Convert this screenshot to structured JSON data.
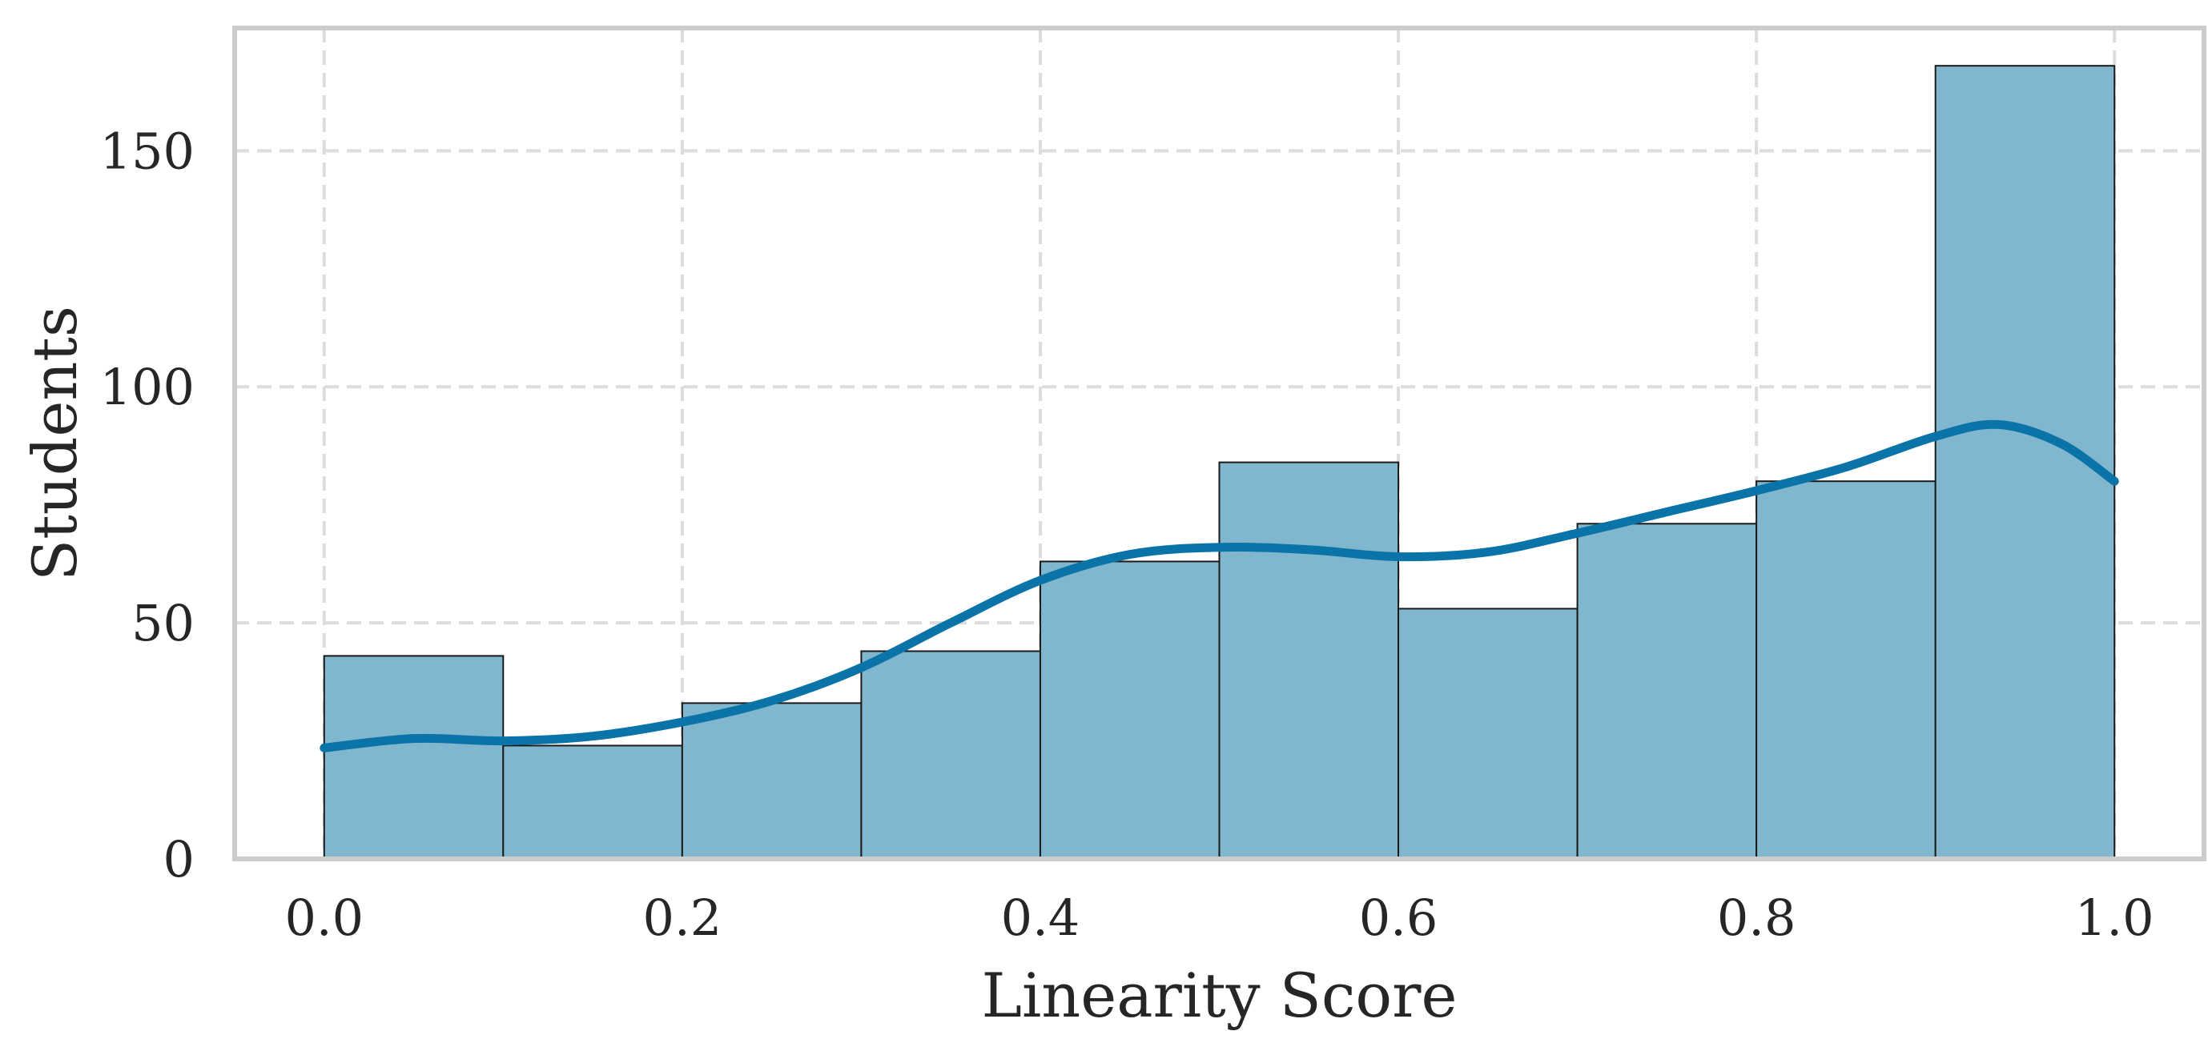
{
  "chart_data": {
    "type": "bar",
    "subtype": "histogram_with_kde",
    "xlabel": "Linearity Score",
    "ylabel": "Students",
    "xlim": [
      -0.05,
      1.05
    ],
    "ylim": [
      0,
      176
    ],
    "xticks": [
      0.0,
      0.2,
      0.4,
      0.6,
      0.8,
      1.0
    ],
    "xtick_labels": [
      "0.0",
      "0.2",
      "0.4",
      "0.6",
      "0.8",
      "1.0"
    ],
    "yticks": [
      0,
      50,
      100,
      150
    ],
    "ytick_labels": [
      "0",
      "50",
      "100",
      "150"
    ],
    "grid": true,
    "bins": [
      {
        "x0": 0.0,
        "x1": 0.1,
        "count": 43
      },
      {
        "x0": 0.1,
        "x1": 0.2,
        "count": 24
      },
      {
        "x0": 0.2,
        "x1": 0.3,
        "count": 33
      },
      {
        "x0": 0.3,
        "x1": 0.4,
        "count": 44
      },
      {
        "x0": 0.4,
        "x1": 0.5,
        "count": 63
      },
      {
        "x0": 0.5,
        "x1": 0.6,
        "count": 84
      },
      {
        "x0": 0.6,
        "x1": 0.7,
        "count": 53
      },
      {
        "x0": 0.7,
        "x1": 0.8,
        "count": 71
      },
      {
        "x0": 0.8,
        "x1": 0.9,
        "count": 80
      },
      {
        "x0": 0.9,
        "x1": 1.0,
        "count": 168
      }
    ],
    "kde": {
      "x": [
        0.0,
        0.05,
        0.1,
        0.15,
        0.2,
        0.25,
        0.3,
        0.35,
        0.4,
        0.45,
        0.5,
        0.55,
        0.6,
        0.65,
        0.7,
        0.75,
        0.8,
        0.85,
        0.9,
        0.935,
        0.97,
        1.0
      ],
      "y": [
        23.5,
        25.5,
        25,
        26,
        29,
        33.5,
        40.5,
        50,
        59,
        64.5,
        66,
        65.5,
        64,
        65,
        69,
        73.5,
        78,
        83,
        89.5,
        92,
        88,
        80
      ]
    },
    "colors": {
      "bar_fill": "#80b7cf",
      "bar_edge": "#1a1a1a",
      "kde_line": "#0a74a8",
      "grid": "#dcdcdc",
      "frame": "#cccccc"
    }
  }
}
